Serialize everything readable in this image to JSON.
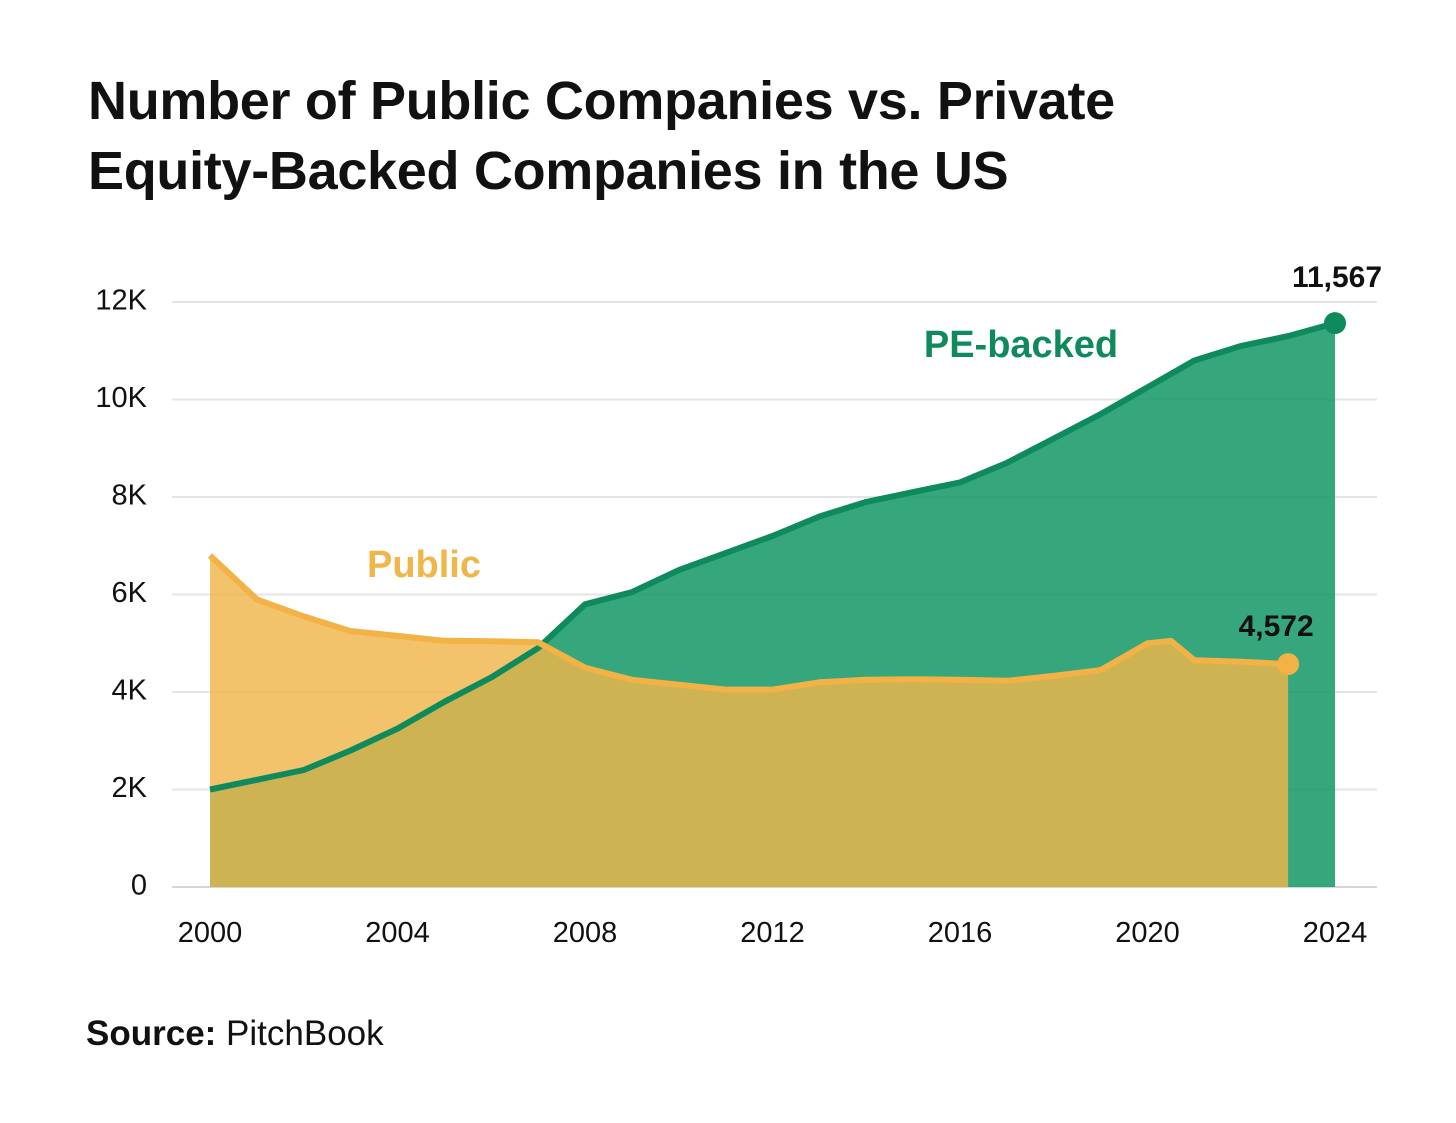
{
  "title_lines": [
    "Number of Public Companies vs. Private",
    "Equity-Backed Companies in the US"
  ],
  "source": {
    "label": "Source:",
    "value": "PitchBook"
  },
  "colors": {
    "public": "#f0b64a",
    "public_line": "#f2b245",
    "pe": "#1a9a6a",
    "pe_line": "#0e8a5c",
    "overlap": "#c9b44f",
    "grid": "#e4e4e4",
    "text": "#111111"
  },
  "chart_data": {
    "type": "area",
    "title": "Number of Public Companies vs. Private Equity-Backed Companies in the US",
    "xlabel": "",
    "ylabel": "",
    "xlim": [
      2000,
      2024
    ],
    "ylim": [
      0,
      12000
    ],
    "x_ticks": [
      2000,
      2004,
      2008,
      2012,
      2016,
      2020,
      2024
    ],
    "x_tick_labels": [
      "2000",
      "2004",
      "2008",
      "2012",
      "2016",
      "2020",
      "2024"
    ],
    "y_ticks": [
      0,
      2000,
      4000,
      6000,
      8000,
      10000,
      12000
    ],
    "y_tick_labels": [
      "0",
      "2K",
      "4K",
      "6K",
      "8K",
      "10K",
      "12K"
    ],
    "grid": true,
    "series": [
      {
        "name": "Public",
        "label": "Public",
        "x": [
          2000,
          2001,
          2002,
          2003,
          2004,
          2005,
          2006,
          2007,
          2008,
          2009,
          2010,
          2011,
          2012,
          2013,
          2014,
          2015,
          2016,
          2017,
          2018,
          2019,
          2020,
          2020.5,
          2021,
          2022,
          2023
        ],
        "values": [
          6800,
          5900,
          5550,
          5250,
          5150,
          5050,
          5040,
          5020,
          4500,
          4250,
          4150,
          4050,
          4050,
          4200,
          4250,
          4260,
          4250,
          4230,
          4330,
          4450,
          5000,
          5050,
          4650,
          4620,
          4572
        ],
        "end_label": "4,572"
      },
      {
        "name": "PE-backed",
        "label": "PE-backed",
        "x": [
          2000,
          2001,
          2002,
          2003,
          2004,
          2005,
          2006,
          2007,
          2008,
          2009,
          2010,
          2011,
          2012,
          2013,
          2014,
          2015,
          2016,
          2017,
          2018,
          2019,
          2020,
          2021,
          2022,
          2023,
          2024
        ],
        "values": [
          2000,
          2200,
          2400,
          2800,
          3250,
          3800,
          4300,
          4900,
          5800,
          6050,
          6500,
          6850,
          7200,
          7600,
          7900,
          8100,
          8300,
          8700,
          9200,
          9700,
          10250,
          10800,
          11100,
          11300,
          11567
        ],
        "end_label": "11,567"
      }
    ]
  }
}
